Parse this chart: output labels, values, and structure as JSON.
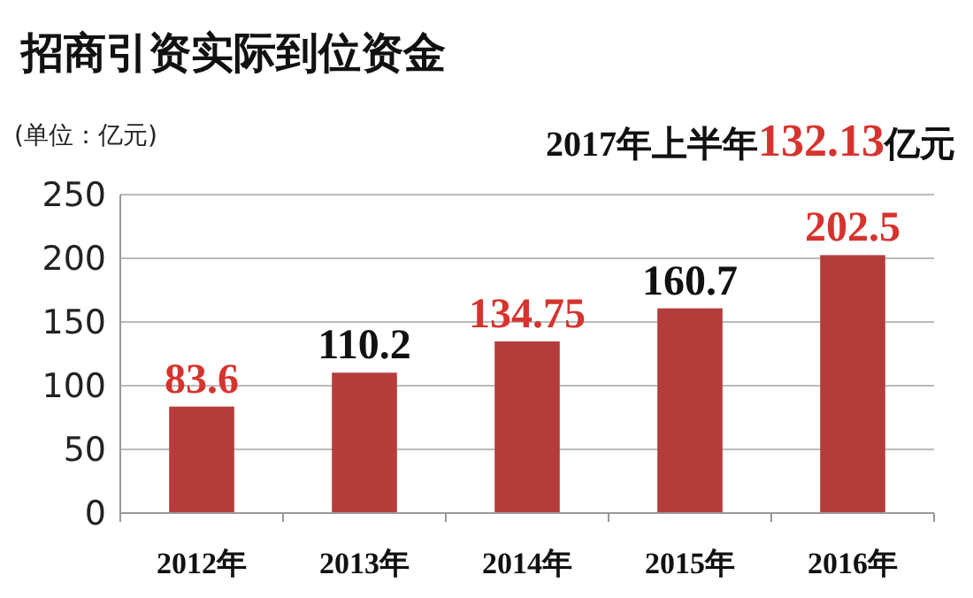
{
  "chart_data": {
    "type": "bar",
    "title": "招商引资实际到位资金",
    "subtitle": "(单位：亿元)",
    "annotations": [
      "2017年上半年132.13亿元"
    ],
    "categories": [
      "2012年",
      "2013年",
      "2014年",
      "2015年",
      "2016年"
    ],
    "values": [
      83.6,
      110.2,
      134.75,
      160.7,
      202.5
    ],
    "value_labels": [
      "83.6",
      "110.2",
      "134.75",
      "160.7",
      "202.5"
    ],
    "color": "#b43c3a",
    "ylim": [
      0,
      250
    ],
    "yticks": [
      0,
      50,
      100,
      150,
      200,
      250
    ],
    "grid": "y"
  }
}
